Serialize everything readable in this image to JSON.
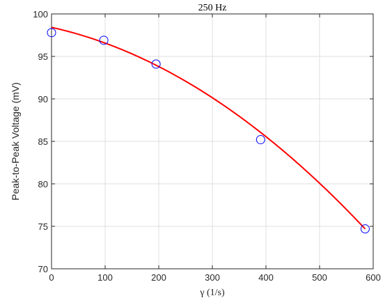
{
  "chart_data": {
    "type": "scatter",
    "title": "250 Hz",
    "xlabel": "γ (1/s)",
    "ylabel": "Peak-to-Peak Voltage (mV)",
    "xlim": [
      0,
      600
    ],
    "ylim": [
      70,
      100
    ],
    "xticks": [
      0,
      100,
      200,
      300,
      400,
      500,
      600
    ],
    "yticks": [
      70,
      75,
      80,
      85,
      90,
      95,
      100
    ],
    "grid": true,
    "series": [
      {
        "kind": "scatter",
        "marker": "open-circle",
        "color": "#0000ff",
        "x": [
          0,
          97.5,
          195,
          390,
          585
        ],
        "y": [
          97.8,
          96.9,
          94.1,
          85.2,
          74.7
        ]
      },
      {
        "kind": "line",
        "color": "#ff0000",
        "fit": "quadratic",
        "coefficients": [
          98.42,
          -0.014,
          -4.54e-05
        ],
        "x_range": [
          0,
          585
        ]
      }
    ]
  }
}
